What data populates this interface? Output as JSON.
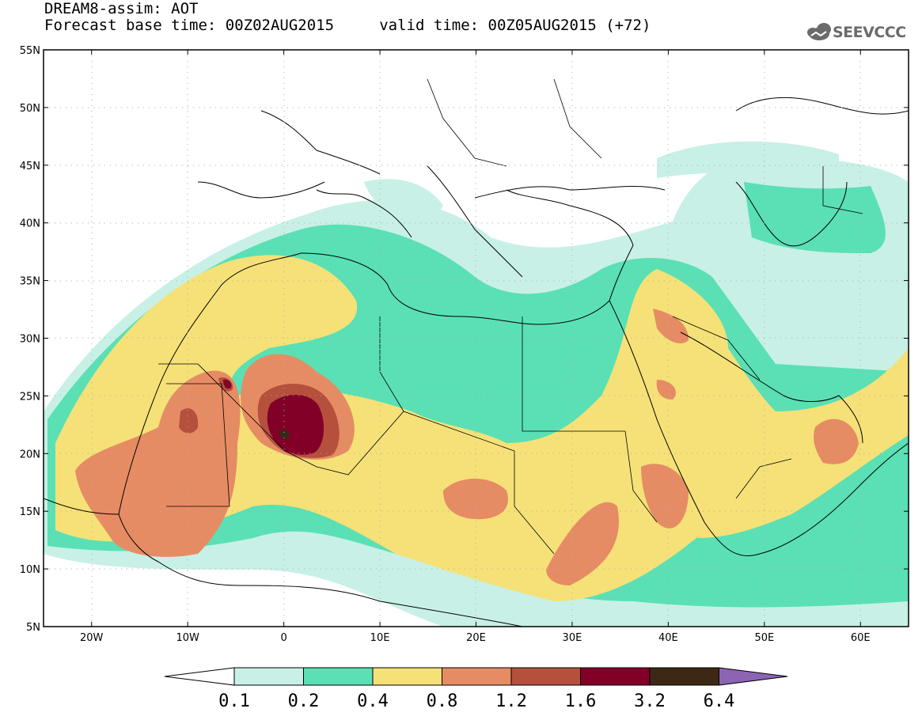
{
  "header": {
    "title": "DREAM8-assim: AOT",
    "subtitle": "Forecast base time: 00Z02AUG2015     valid time: 00Z05AUG2015 (+72)"
  },
  "logo": {
    "text": "SEEVCCC",
    "icon": "cloud-icon"
  },
  "map": {
    "lon_range": [
      -25,
      65
    ],
    "lat_range": [
      5,
      55
    ],
    "lat_ticks": [
      "5N",
      "10N",
      "15N",
      "20N",
      "25N",
      "30N",
      "35N",
      "40N",
      "45N",
      "50N",
      "55N"
    ],
    "lon_ticks": [
      "20W",
      "10W",
      "0",
      "10E",
      "20E",
      "30E",
      "40E",
      "50E",
      "60E"
    ],
    "grid": "dotted"
  },
  "colorbar": {
    "levels": [
      "0.1",
      "0.2",
      "0.4",
      "0.8",
      "1.2",
      "1.6",
      "3.2",
      "6.4"
    ],
    "colors": [
      "#c8f0e6",
      "#5ae0b4",
      "#f5e178",
      "#e68c64",
      "#b4503c",
      "#820028",
      "#3c2814",
      "#8c64b4"
    ]
  }
}
